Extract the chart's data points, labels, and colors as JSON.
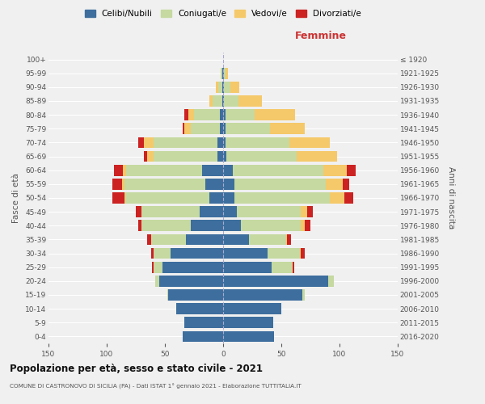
{
  "age_groups": [
    "0-4",
    "5-9",
    "10-14",
    "15-19",
    "20-24",
    "25-29",
    "30-34",
    "35-39",
    "40-44",
    "45-49",
    "50-54",
    "55-59",
    "60-64",
    "65-69",
    "70-74",
    "75-79",
    "80-84",
    "85-89",
    "90-94",
    "95-99",
    "100+"
  ],
  "birth_years": [
    "2016-2020",
    "2011-2015",
    "2006-2010",
    "2001-2005",
    "1996-2000",
    "1991-1995",
    "1986-1990",
    "1981-1985",
    "1976-1980",
    "1971-1975",
    "1966-1970",
    "1961-1965",
    "1956-1960",
    "1951-1955",
    "1946-1950",
    "1941-1945",
    "1936-1940",
    "1931-1935",
    "1926-1930",
    "1921-1925",
    "≤ 1920"
  ],
  "male": {
    "celibi": [
      35,
      33,
      40,
      47,
      55,
      52,
      45,
      32,
      28,
      20,
      12,
      15,
      18,
      5,
      5,
      3,
      3,
      1,
      1,
      1,
      0
    ],
    "coniugati": [
      0,
      0,
      0,
      1,
      3,
      8,
      15,
      30,
      42,
      50,
      72,
      70,
      65,
      55,
      55,
      25,
      22,
      8,
      3,
      1,
      0
    ],
    "vedovi": [
      0,
      0,
      0,
      0,
      0,
      0,
      0,
      0,
      0,
      0,
      1,
      2,
      3,
      5,
      8,
      5,
      5,
      3,
      2,
      0,
      0
    ],
    "divorziati": [
      0,
      0,
      0,
      0,
      0,
      1,
      2,
      3,
      3,
      5,
      10,
      8,
      8,
      3,
      5,
      2,
      3,
      0,
      0,
      0,
      0
    ]
  },
  "female": {
    "nubili": [
      44,
      43,
      50,
      68,
      90,
      42,
      38,
      22,
      15,
      12,
      10,
      10,
      8,
      3,
      2,
      2,
      2,
      1,
      1,
      1,
      0
    ],
    "coniugate": [
      0,
      0,
      0,
      2,
      5,
      18,
      28,
      32,
      52,
      55,
      82,
      78,
      78,
      60,
      55,
      38,
      25,
      12,
      5,
      1,
      0
    ],
    "vedove": [
      0,
      0,
      0,
      0,
      0,
      0,
      1,
      1,
      3,
      5,
      12,
      15,
      20,
      35,
      35,
      30,
      35,
      20,
      8,
      2,
      0
    ],
    "divorziate": [
      0,
      0,
      0,
      0,
      0,
      1,
      3,
      3,
      5,
      5,
      8,
      5,
      8,
      0,
      0,
      0,
      0,
      0,
      0,
      0,
      0
    ]
  },
  "colors": {
    "celibi": "#3d6e9e",
    "coniugati": "#c5d9a0",
    "vedovi": "#f5c96a",
    "divorziati": "#cc2222"
  },
  "title": "Popolazione per età, sesso e stato civile - 2021",
  "subtitle": "COMUNE DI CASTRONOVO DI SICILIA (PA) - Dati ISTAT 1° gennaio 2021 - Elaborazione TUTTITALIA.IT",
  "xlabel_right": "Femmine",
  "ylabel_left": "Fasce di età",
  "ylabel_right": "Anni di nascita",
  "legend_labels": [
    "Celibi/Nubili",
    "Coniugati/e",
    "Vedovi/e",
    "Divorziati/e"
  ],
  "xlim": 150,
  "background_color": "#f0f0f0"
}
